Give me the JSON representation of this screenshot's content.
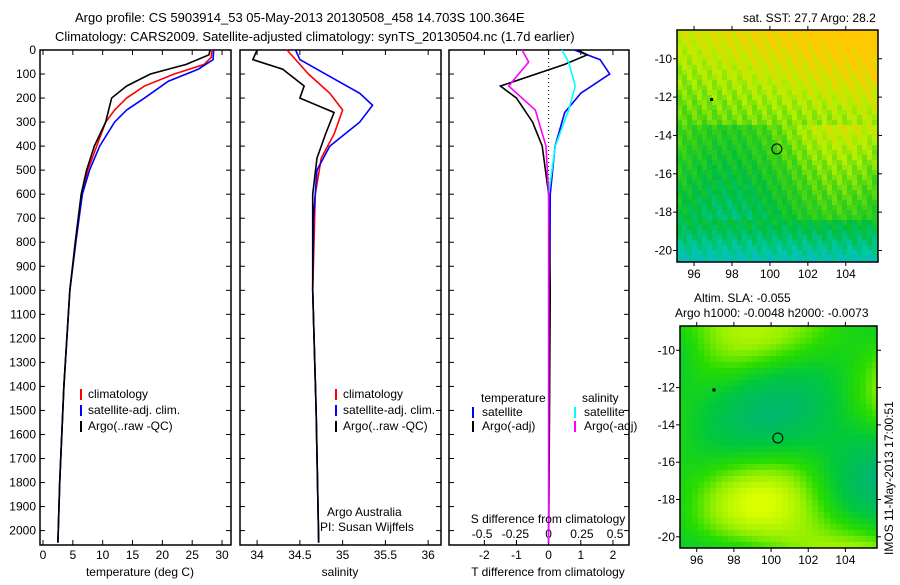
{
  "title_line1": "Argo profile: CS 5903914_53 05-May-2013 20130508_458 14.703S 100.364E",
  "title_line2": "Climatology: CARS2009. Satellite-adjusted climatology: synTS_20130504.nc (1.7d earlier)",
  "side_label": "IMOS 11-May-2013 17:00:51",
  "colors": {
    "clim": "#ff0000",
    "sat": "#0000ff",
    "argo": "#000000",
    "s_sat": "#00ffff",
    "s_argo": "#ff00ff"
  },
  "chart_data": [
    {
      "type": "line",
      "xlabel": "temperature (deg C)",
      "ylabel": "",
      "xlim": [
        -0.5,
        31.5
      ],
      "ylim": [
        2150,
        0
      ],
      "xticks": [
        "0",
        "5",
        "10",
        "15",
        "20",
        "25",
        "30"
      ],
      "xtick_values": [
        0,
        5,
        10,
        15,
        20,
        25,
        30
      ],
      "yticks": [
        "0",
        "100",
        "200",
        "300",
        "400",
        "500",
        "600",
        "700",
        "800",
        "900",
        "1000",
        "1100",
        "1200",
        "1300",
        "1400",
        "1500",
        "1600",
        "1700",
        "1800",
        "1900",
        "2000"
      ],
      "ytick_values": [
        0,
        100,
        200,
        300,
        400,
        500,
        600,
        700,
        800,
        900,
        1000,
        1100,
        1200,
        1300,
        1400,
        1500,
        1600,
        1700,
        1800,
        1900,
        2000
      ],
      "legend": [
        "climatology",
        "satellite-adj. clim.",
        "Argo(..raw -QC)"
      ],
      "series": [
        {
          "name": "climatology",
          "color_key": "clim",
          "points": [
            [
              28.3,
              0
            ],
            [
              28.2,
              30
            ],
            [
              27,
              60
            ],
            [
              22,
              100
            ],
            [
              17,
              150
            ],
            [
              14,
              200
            ],
            [
              12,
              250
            ],
            [
              10.5,
              300
            ],
            [
              9,
              400
            ],
            [
              7.5,
              500
            ],
            [
              6.5,
              600
            ],
            [
              5.5,
              800
            ],
            [
              4.5,
              1000
            ],
            [
              3.5,
              1400
            ],
            [
              2.8,
              1800
            ],
            [
              2.5,
              2050
            ]
          ]
        },
        {
          "name": "satellite-adj. clim.",
          "color_key": "sat",
          "points": [
            [
              28.6,
              0
            ],
            [
              28.5,
              40
            ],
            [
              26,
              80
            ],
            [
              21,
              130
            ],
            [
              17,
              200
            ],
            [
              14,
              250
            ],
            [
              12,
              300
            ],
            [
              9.5,
              400
            ],
            [
              7.8,
              500
            ],
            [
              6.6,
              600
            ],
            [
              5.5,
              800
            ],
            [
              4.5,
              1000
            ],
            [
              3.5,
              1400
            ],
            [
              2.8,
              1800
            ],
            [
              2.5,
              2050
            ]
          ]
        },
        {
          "name": "Argo(..raw -QC)",
          "color_key": "argo",
          "points": [
            [
              28,
              0
            ],
            [
              27.8,
              20
            ],
            [
              24,
              60
            ],
            [
              18,
              100
            ],
            [
              14,
              150
            ],
            [
              11.5,
              200
            ],
            [
              10.5,
              300
            ],
            [
              8.6,
              400
            ],
            [
              7.3,
              500
            ],
            [
              6.4,
              600
            ],
            [
              5.4,
              800
            ],
            [
              4.5,
              1000
            ],
            [
              3.5,
              1400
            ],
            [
              2.8,
              1800
            ],
            [
              2.5,
              2050
            ]
          ]
        }
      ]
    },
    {
      "type": "line",
      "xlabel": "salinity",
      "xlim": [
        33.8,
        36.15
      ],
      "ylim": [
        2150,
        0
      ],
      "xticks": [
        "34",
        "34.5",
        "35",
        "35.5",
        "36"
      ],
      "xtick_values": [
        34,
        34.5,
        35,
        35.5,
        36
      ],
      "legend": [
        "climatology",
        "satellite-adj. clim.",
        "Argo(..raw -QC)"
      ],
      "annotation": [
        "Argo Australia",
        "PI: Susan Wijffels"
      ],
      "series": [
        {
          "name": "climatology",
          "color_key": "clim",
          "points": [
            [
              34.35,
              0
            ],
            [
              34.45,
              40
            ],
            [
              34.6,
              100
            ],
            [
              34.85,
              180
            ],
            [
              35.0,
              250
            ],
            [
              34.9,
              350
            ],
            [
              34.75,
              450
            ],
            [
              34.68,
              600
            ],
            [
              34.65,
              1000
            ],
            [
              34.69,
              1500
            ],
            [
              34.72,
              2050
            ]
          ]
        },
        {
          "name": "satellite-adj. clim.",
          "color_key": "sat",
          "points": [
            [
              34.45,
              0
            ],
            [
              34.5,
              40
            ],
            [
              34.8,
              100
            ],
            [
              35.2,
              180
            ],
            [
              35.35,
              230
            ],
            [
              35.2,
              300
            ],
            [
              34.85,
              400
            ],
            [
              34.7,
              500
            ],
            [
              34.66,
              700
            ],
            [
              34.65,
              1000
            ],
            [
              34.69,
              1500
            ],
            [
              34.72,
              2050
            ]
          ]
        },
        {
          "name": "Argo(..raw -QC)",
          "color_key": "argo",
          "points": [
            [
              34.0,
              0
            ],
            [
              33.95,
              40
            ],
            [
              34.3,
              80
            ],
            [
              34.55,
              150
            ],
            [
              34.5,
              200
            ],
            [
              34.9,
              260
            ],
            [
              34.8,
              350
            ],
            [
              34.7,
              450
            ],
            [
              34.65,
              600
            ],
            [
              34.65,
              1000
            ],
            [
              34.69,
              1500
            ],
            [
              34.72,
              2050
            ]
          ]
        }
      ]
    },
    {
      "type": "line",
      "xlabel": "T difference from climatology",
      "x2label": "S difference from climatology",
      "xlim": [
        -3.1,
        2.5
      ],
      "ylim": [
        2150,
        0
      ],
      "xticks": [
        "-2",
        "-1",
        "0",
        "1",
        "2"
      ],
      "xtick_values": [
        -2,
        -1,
        0,
        1,
        2
      ],
      "x2ticks": [
        "-0.5",
        "-0.25",
        "0",
        "0.25",
        "0.5"
      ],
      "x2tick_values": [
        -0.5,
        -0.25,
        0,
        0.25,
        0.5
      ],
      "legend_headers": [
        "temperature",
        "salinity"
      ],
      "legend": [
        "satellite",
        "Argo(-adj)",
        "satellite",
        "Argo(-adj)"
      ],
      "series": [
        {
          "name": "T satellite",
          "axis": "T",
          "color_key": "sat",
          "points": [
            [
              0.8,
              0
            ],
            [
              1.6,
              40
            ],
            [
              1.9,
              100
            ],
            [
              1.0,
              180
            ],
            [
              0.5,
              260
            ],
            [
              0.2,
              400
            ],
            [
              0.05,
              600
            ],
            [
              0,
              2050
            ]
          ]
        },
        {
          "name": "T Argo(-adj)",
          "axis": "T",
          "color_key": "argo",
          "points": [
            [
              0.9,
              0
            ],
            [
              1.2,
              20
            ],
            [
              0.5,
              60
            ],
            [
              -1.5,
              150
            ],
            [
              -1,
              200
            ],
            [
              -0.5,
              300
            ],
            [
              -0.2,
              400
            ],
            [
              0,
              600
            ],
            [
              0.05,
              1000
            ],
            [
              0,
              2050
            ]
          ]
        },
        {
          "name": "S satellite",
          "axis": "S",
          "color_key": "s_sat",
          "points": [
            [
              0.1,
              0
            ],
            [
              0.15,
              50
            ],
            [
              0.2,
              150
            ],
            [
              0.15,
              250
            ],
            [
              0.05,
              400
            ],
            [
              0,
              600
            ],
            [
              0,
              2050
            ]
          ]
        },
        {
          "name": "S Argo(-adj)",
          "axis": "S",
          "color_key": "s_argo",
          "points": [
            [
              -0.2,
              0
            ],
            [
              -0.15,
              50
            ],
            [
              -0.3,
              150
            ],
            [
              -0.1,
              250
            ],
            [
              -0.02,
              400
            ],
            [
              0,
              600
            ],
            [
              0,
              2050
            ]
          ]
        }
      ]
    },
    {
      "type": "heatmap",
      "title": "sat. SST: 27.7  Argo: 28.2",
      "xticks": [
        "96",
        "98",
        "100",
        "102",
        "104"
      ],
      "xtick_values": [
        96,
        98,
        100,
        102,
        104
      ],
      "yticks": [
        "-10",
        "-12",
        "-14",
        "-16",
        "-18",
        "-20"
      ],
      "ytick_values": [
        -10,
        -12,
        -14,
        -16,
        -18,
        -20
      ],
      "xlim": [
        95.1,
        105.7
      ],
      "ylim": [
        -20.6,
        -8.5
      ],
      "profile_location": [
        100.364,
        -14.703
      ]
    },
    {
      "type": "heatmap",
      "title_line1": "Altim. SLA: -0.055",
      "title_line2": "Argo h1000: -0.0048 h2000: -0.0073",
      "xticks": [
        "96",
        "98",
        "100",
        "102",
        "104"
      ],
      "xtick_values": [
        96,
        98,
        100,
        102,
        104
      ],
      "yticks": [
        "-10",
        "-12",
        "-14",
        "-16",
        "-18",
        "-20"
      ],
      "ytick_values": [
        -10,
        -12,
        -14,
        -16,
        -18,
        -20
      ],
      "xlim": [
        95.1,
        105.7
      ],
      "ylim": [
        -20.6,
        -8.7
      ],
      "profile_location": [
        100.364,
        -14.703
      ]
    }
  ]
}
